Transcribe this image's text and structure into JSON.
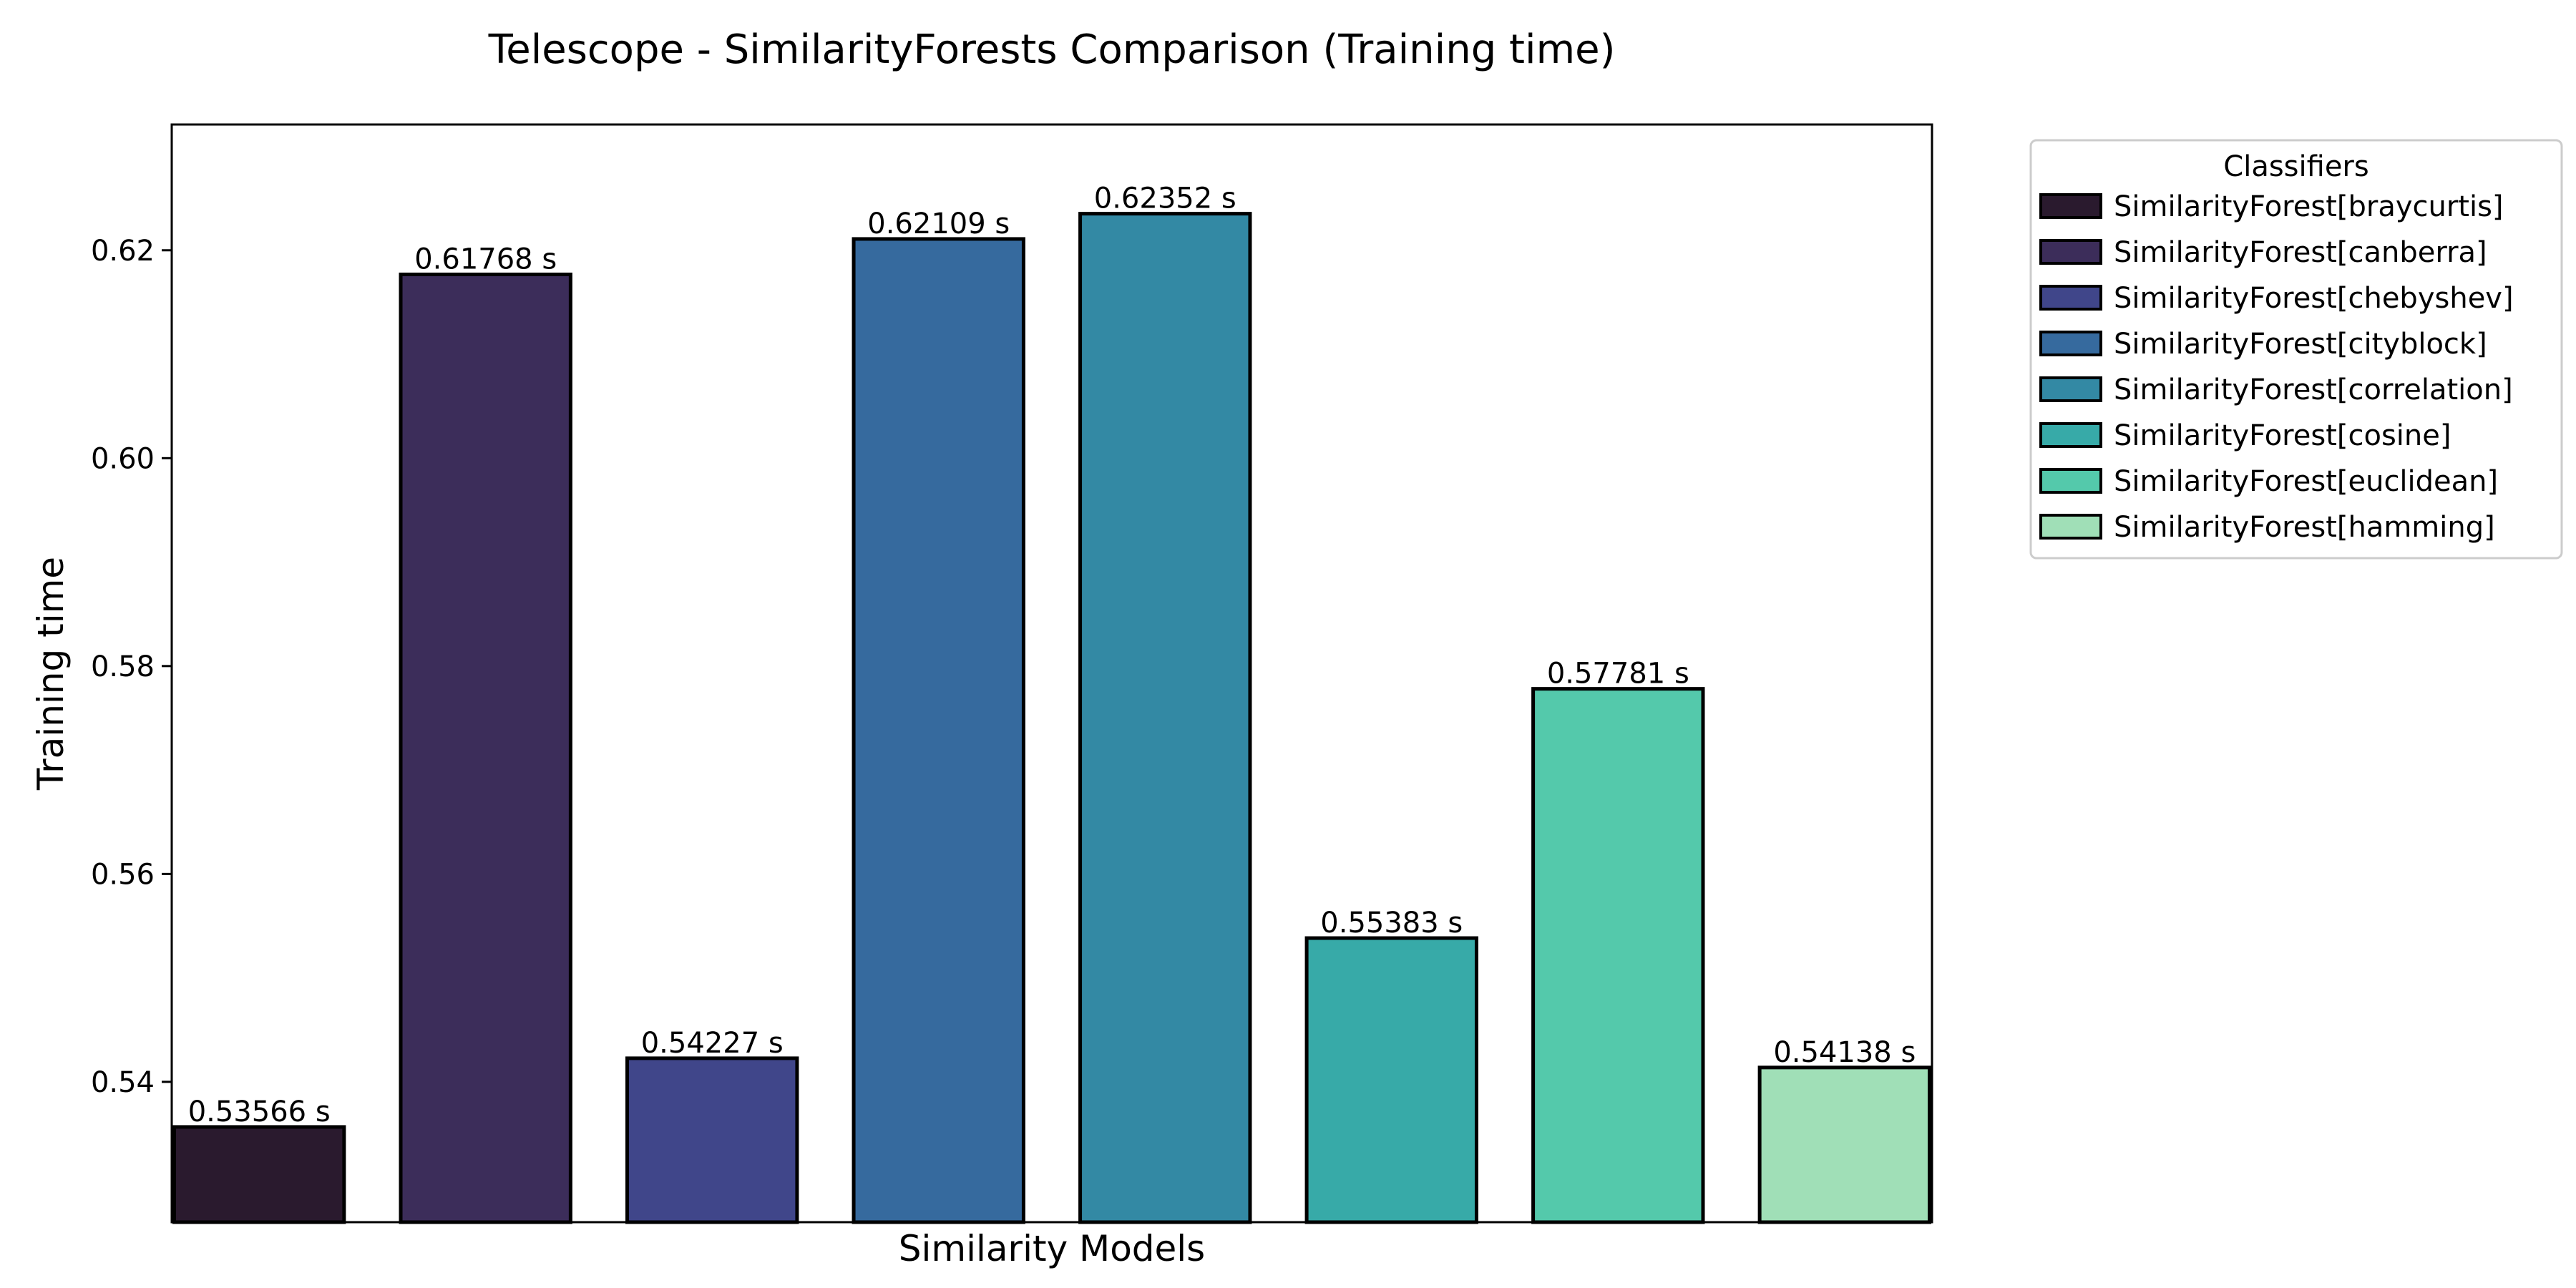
{
  "chart_data": {
    "type": "bar",
    "title": "Telescope - SimilarityForests Comparison (Training time)",
    "xlabel": "Similarity Models",
    "ylabel": "Training time",
    "ylim": [
      0.5265,
      0.6321
    ],
    "yticks": [
      0.54,
      0.56,
      0.58,
      0.6,
      0.62
    ],
    "ytick_labels": [
      "0.54",
      "0.56",
      "0.58",
      "0.60",
      "0.62"
    ],
    "grid": false,
    "legend_placement": "outside-top-right",
    "legend_title": "Classifiers",
    "value_suffix": " s",
    "categories": [
      "SimilarityForest[braycurtis]",
      "SimilarityForest[canberra]",
      "SimilarityForest[chebyshev]",
      "SimilarityForest[cityblock]",
      "SimilarityForest[correlation]",
      "SimilarityForest[cosine]",
      "SimilarityForest[euclidean]",
      "SimilarityForest[hamming]"
    ],
    "values": [
      0.53566,
      0.61768,
      0.54227,
      0.62109,
      0.62352,
      0.55383,
      0.57781,
      0.54138
    ],
    "value_labels": [
      "0.53566 s",
      "0.61768 s",
      "0.54227 s",
      "0.62109 s",
      "0.62352 s",
      "0.55383 s",
      "0.57781 s",
      "0.54138 s"
    ],
    "colors": [
      "#2a1a2e",
      "#3c2d5a",
      "#40468a",
      "#366a9e",
      "#3389a4",
      "#37aaa8",
      "#54c9ab",
      "#a0dfb7"
    ]
  }
}
